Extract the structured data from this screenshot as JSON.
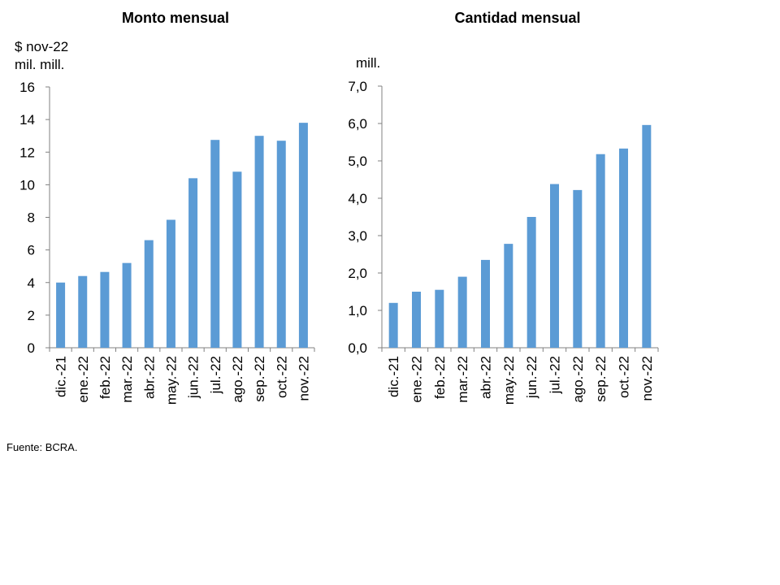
{
  "chart_data": [
    {
      "type": "bar",
      "title": "Monto mensual",
      "unit_lines": [
        "$ nov-22",
        "mil. mill."
      ],
      "categories": [
        "dic.-21",
        "ene.-22",
        "feb.-22",
        "mar.-22",
        "abr.-22",
        "may.-22",
        "jun.-22",
        "jul.-22",
        "ago.-22",
        "sep.-22",
        "oct.-22",
        "nov.-22"
      ],
      "values": [
        4.0,
        4.4,
        4.65,
        5.2,
        6.6,
        7.85,
        10.4,
        12.75,
        10.8,
        13.0,
        12.7,
        13.8
      ],
      "ylim": [
        0,
        16
      ],
      "yticks": [
        "0",
        "2",
        "4",
        "6",
        "8",
        "10",
        "12",
        "14",
        "16"
      ],
      "color": "#5b9bd5",
      "grid": false
    },
    {
      "type": "bar",
      "title": "Cantidad mensual",
      "unit_lines": [
        "mill."
      ],
      "categories": [
        "dic.-21",
        "ene.-22",
        "feb.-22",
        "mar.-22",
        "abr.-22",
        "may.-22",
        "jun.-22",
        "jul.-22",
        "ago.-22",
        "sep.-22",
        "oct.-22",
        "nov.-22"
      ],
      "values": [
        1.2,
        1.5,
        1.55,
        1.9,
        2.35,
        2.78,
        3.5,
        4.38,
        4.22,
        5.18,
        5.33,
        5.96
      ],
      "ylim": [
        0,
        7
      ],
      "yticks": [
        "0,0",
        "1,0",
        "2,0",
        "3,0",
        "4,0",
        "5,0",
        "6,0",
        "7,0"
      ],
      "color": "#5b9bd5",
      "grid": false
    }
  ],
  "source": "Fuente: BCRA."
}
